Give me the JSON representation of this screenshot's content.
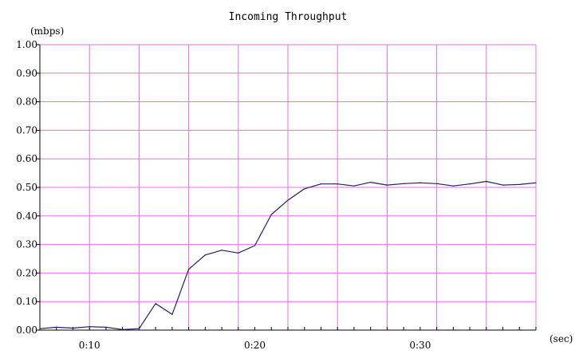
{
  "chart_data": {
    "type": "line",
    "title": "Incoming Throughput",
    "ylabel": "(mbps)",
    "xlabel": "(sec)",
    "xlim": [
      7,
      37
    ],
    "ylim": [
      0,
      1
    ],
    "grid": true,
    "y_ticks": [
      {
        "value": 0.0,
        "label": "0.00"
      },
      {
        "value": 0.1,
        "label": "0.10"
      },
      {
        "value": 0.2,
        "label": "0.20"
      },
      {
        "value": 0.3,
        "label": "0.30"
      },
      {
        "value": 0.4,
        "label": "0.40"
      },
      {
        "value": 0.5,
        "label": "0.50"
      },
      {
        "value": 0.6,
        "label": "0.60"
      },
      {
        "value": 0.7,
        "label": "0.70"
      },
      {
        "value": 0.8,
        "label": "0.80"
      },
      {
        "value": 0.9,
        "label": "0.90"
      },
      {
        "value": 1.0,
        "label": "1.00"
      }
    ],
    "x_ticks": [
      {
        "value": 10,
        "label": "0:10"
      },
      {
        "value": 20,
        "label": "0:20"
      },
      {
        "value": 30,
        "label": "0:30"
      }
    ],
    "x_minor_ticks": [
      7,
      8,
      9,
      10,
      11,
      12,
      13,
      14,
      15,
      16,
      17,
      18,
      19,
      20,
      21,
      22,
      23,
      24,
      25,
      26,
      27,
      28,
      29,
      30,
      31,
      32,
      33,
      34,
      35,
      36,
      37
    ],
    "x_gridlines": [
      10,
      13,
      16,
      19,
      22,
      25,
      28,
      31,
      34,
      37
    ],
    "colors": {
      "grid": "#e070e0",
      "line": "#20205a",
      "axis": "#000000"
    },
    "series": [
      {
        "x": [
          7,
          8,
          9,
          10,
          11,
          12,
          13,
          14,
          15,
          16,
          17,
          18,
          19,
          20,
          21,
          22,
          23,
          24,
          25,
          26,
          27,
          28,
          29,
          30,
          31,
          32,
          33,
          34,
          35,
          36,
          37
        ],
        "values": [
          0.005,
          0.01,
          0.007,
          0.012,
          0.01,
          0.002,
          0.005,
          0.093,
          0.055,
          0.213,
          0.263,
          0.28,
          0.27,
          0.296,
          0.405,
          0.455,
          0.495,
          0.512,
          0.512,
          0.505,
          0.518,
          0.508,
          0.513,
          0.516,
          0.513,
          0.505,
          0.512,
          0.521,
          0.508,
          0.51,
          0.516
        ]
      }
    ]
  }
}
